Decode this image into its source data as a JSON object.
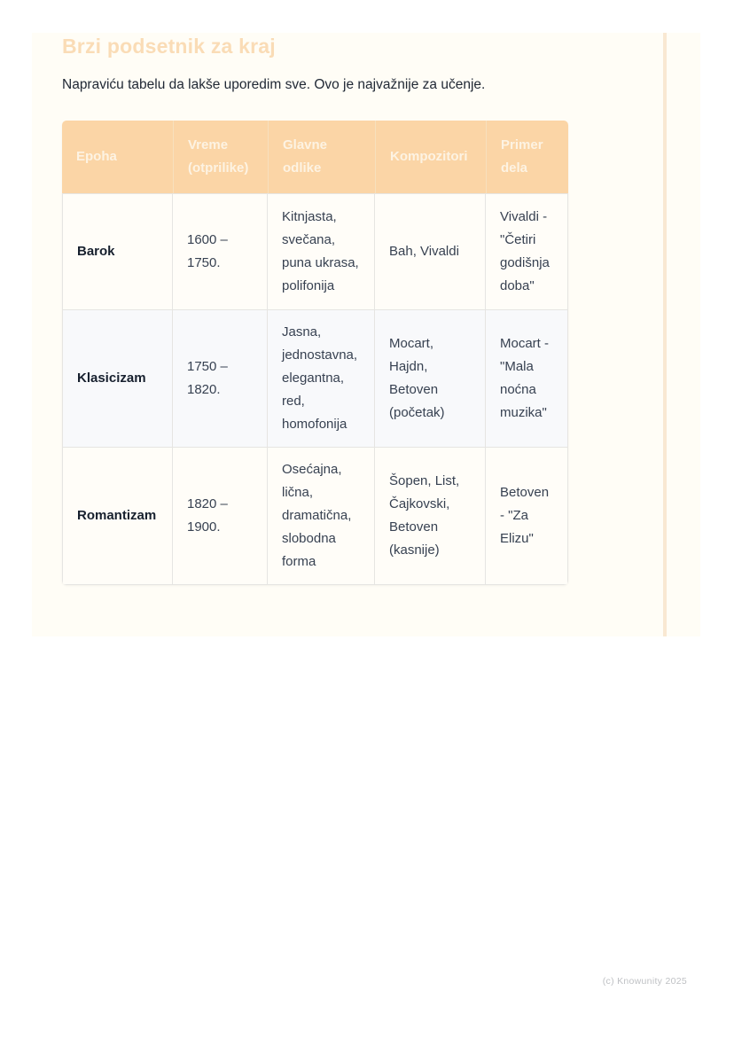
{
  "page": {
    "title": "Brzi podsetnik za kraj",
    "intro": "Napraviću tabelu da lakše uporedim sve. Ovo je najvažnije za učenje.",
    "footer": "(c) Knowunity 2025"
  },
  "table": {
    "headers": [
      "Epoha",
      "Vreme (otprilike)",
      "Glavne odlike",
      "Kompozitori",
      "Primer dela"
    ],
    "rows": [
      [
        "Barok",
        "1600 – 1750.",
        "Kitnjasta, svečana, puna ukrasa, polifonija",
        "Bah, Vivaldi",
        "Vivaldi - \"Četiri godišnja doba\""
      ],
      [
        "Klasicizam",
        "1750 – 1820.",
        "Jasna, jednostavna, elegantna, red, homofonija",
        "Mocart, Hajdn, Betoven (početak)",
        "Mocart - \"Mala noćna muzika\""
      ],
      [
        "Romantizam",
        "1820 – 1900.",
        "Osećajna, lična, dramatična, slobodna forma",
        "Šopen, List, Čajkovski, Betoven (kasnije)",
        "Betoven - \"Za Elizu\""
      ]
    ]
  },
  "colors": {
    "header_background": "#fbd5a6",
    "header_text": "#fdf3e3",
    "title_text": "#fadcb6",
    "card_background": "#fffdf6",
    "margin_line": "#f9e8d2",
    "row_stripe": "#f8f9fb",
    "body_text": "#374151"
  }
}
